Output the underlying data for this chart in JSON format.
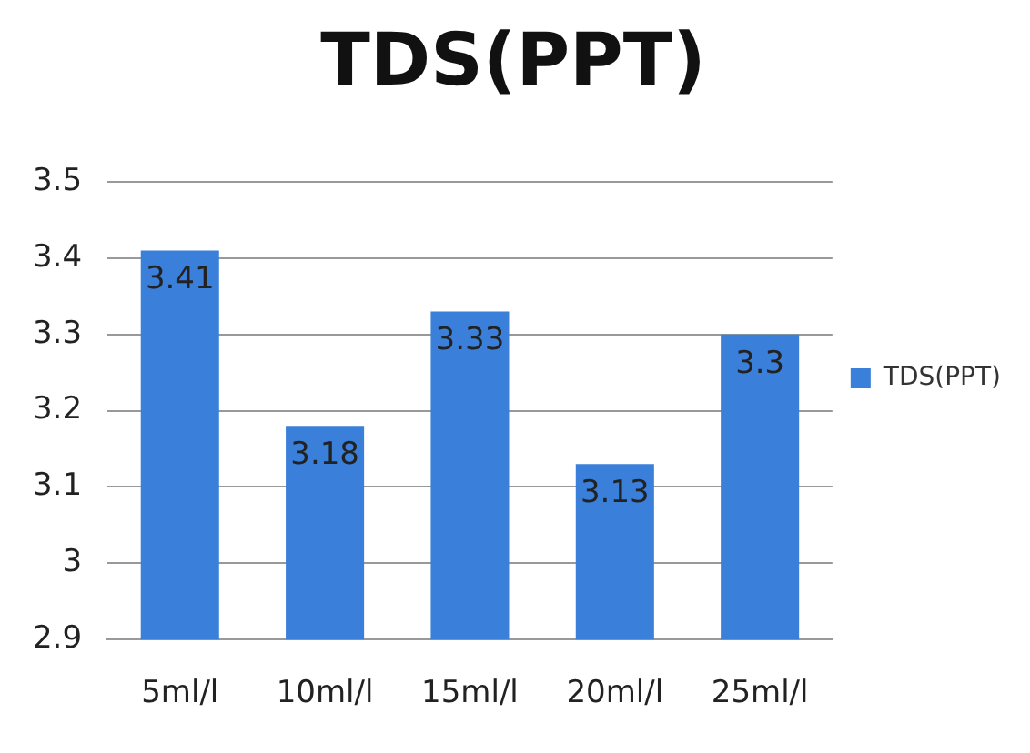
{
  "chart_data": {
    "type": "bar",
    "title": "TDS(PPT)",
    "categories": [
      "5ml/l",
      "10ml/l",
      "15ml/l",
      "20ml/l",
      "25ml/l"
    ],
    "series": [
      {
        "name": "TDS(PPT)",
        "color": "#3a7fd9",
        "values": [
          3.41,
          3.18,
          3.33,
          3.13,
          3.3
        ]
      }
    ],
    "ylim": [
      2.9,
      3.5
    ],
    "yticks": [
      2.9,
      3,
      3.1,
      3.2,
      3.3,
      3.4,
      3.5
    ],
    "grid": "y",
    "legend": "right",
    "data_labels": true
  }
}
